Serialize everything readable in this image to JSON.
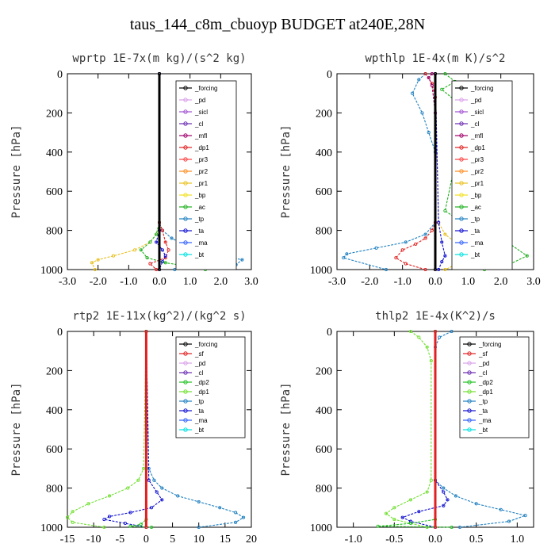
{
  "title": "taus_144_c8m_cbuoyp  BUDGET at240E,28N",
  "colors": {
    "_forcing": "#000000",
    "_pd": "#d8a0e8",
    "_sicl": "#a050d0",
    "_cl": "#6a2bb0",
    "_mfl": "#a0006a",
    "_dp1": "#e02020",
    "_pr3": "#ff4040",
    "_pr2": "#ff8c20",
    "_pr1": "#e8c020",
    "_bp": "#f0e020",
    "_ac": "#20b020",
    "_tp": "#2080c0",
    "_ta": "#1010d0",
    "_ma": "#3060ff",
    "_bt": "#00e0e0",
    "_sf": "#e02020",
    "_dp2": "#20c020",
    "_dp1g": "#70e030"
  },
  "chart_data": [
    {
      "type": "line",
      "title": "wprtp  1E-7x(m kg)/(s^2 kg)",
      "ylabel": "Pressure [hPa]",
      "xlim": [
        -3.0,
        3.0
      ],
      "ylim": [
        1000,
        0
      ],
      "xticks": [
        "-3.0",
        "-2.0",
        "-1.0",
        "0.0",
        "1.0",
        "2.0",
        "3.0"
      ],
      "yticks": [
        "0",
        "200",
        "400",
        "600",
        "800",
        "1000"
      ],
      "legend": [
        "_forcing",
        "_pd",
        "_sicl",
        "_cl",
        "_mfl",
        "_dp1",
        "_pr3",
        "_pr2",
        "_pr1",
        "_bp",
        "_ac",
        "_tp",
        "_ta",
        "_ma",
        "_bt"
      ],
      "legend_keys": [
        "_forcing",
        "_pd",
        "_sicl",
        "_cl",
        "_mfl",
        "_dp1",
        "_pr3",
        "_pr2",
        "_pr1",
        "_bp",
        "_ac",
        "_tp",
        "_ta",
        "_ma",
        "_bt"
      ],
      "series": [
        {
          "key": "_pr1",
          "x": [
            0,
            0,
            -0.1,
            -0.3,
            -0.8,
            -1.5,
            -2.0,
            -2.2,
            -2.1
          ],
          "y": [
            0,
            760,
            820,
            860,
            900,
            930,
            950,
            965,
            1000
          ]
        },
        {
          "key": "_ac",
          "x": [
            0,
            0,
            -0.1,
            -0.3,
            -0.6,
            -0.4,
            0.2,
            1.2,
            1.5
          ],
          "y": [
            0,
            760,
            820,
            860,
            900,
            940,
            965,
            990,
            1000
          ]
        },
        {
          "key": "_tp",
          "x": [
            0,
            0,
            0.1,
            0.4,
            0.9,
            1.5,
            2.2,
            2.7,
            2.5,
            0.5
          ],
          "y": [
            0,
            760,
            800,
            840,
            880,
            910,
            935,
            950,
            975,
            1000
          ]
        },
        {
          "key": "_dp1",
          "x": [
            0,
            0,
            0.1,
            0.2,
            0.3,
            0.2,
            -0.3,
            -0.1
          ],
          "y": [
            0,
            760,
            800,
            860,
            900,
            940,
            970,
            1000
          ]
        },
        {
          "key": "_ta",
          "x": [
            0,
            0,
            -0.1,
            0.1,
            0.2,
            0.1,
            0
          ],
          "y": [
            0,
            800,
            860,
            900,
            930,
            960,
            1000
          ]
        },
        {
          "key": "_forcing",
          "x": [
            0,
            0
          ],
          "y": [
            0,
            1000
          ]
        }
      ]
    },
    {
      "type": "line",
      "title": "wpthlp  1E-4x(m K)/s^2",
      "ylabel": "Pressure [hPa]",
      "xlim": [
        -3.0,
        3.0
      ],
      "ylim": [
        1000,
        0
      ],
      "xticks": [
        "-3.0",
        "-2.0",
        "-1.0",
        "0.0",
        "1.0",
        "2.0",
        "3.0"
      ],
      "yticks": [
        "0",
        "200",
        "400",
        "600",
        "800",
        "1000"
      ],
      "legend": [
        "_forcing",
        "_pd",
        "_sicl",
        "_cl",
        "_mfl",
        "_dp1",
        "_pr3",
        "_pr2",
        "_pr1",
        "_bp",
        "_ac",
        "_tp",
        "_ta",
        "_ma",
        "_bt"
      ],
      "legend_keys": [
        "_forcing",
        "_pd",
        "_sicl",
        "_cl",
        "_mfl",
        "_dp1",
        "_pr3",
        "_pr2",
        "_pr1",
        "_bp",
        "_ac",
        "_tp",
        "_ta",
        "_ma",
        "_bt"
      ],
      "series": [
        {
          "key": "_ac",
          "x": [
            0.3,
            0.6,
            0.2,
            0.7,
            0.8,
            0.9,
            1.0,
            0.6,
            0.3,
            1.0,
            2.2,
            2.8,
            2.3,
            1.5
          ],
          "y": [
            0,
            40,
            80,
            150,
            220,
            300,
            380,
            460,
            700,
            780,
            860,
            930,
            970,
            1000
          ]
        },
        {
          "key": "_tp",
          "x": [
            -0.3,
            -0.5,
            -0.7,
            -0.4,
            -0.2,
            0,
            0,
            -0.3,
            -0.9,
            -1.8,
            -2.7,
            -2.8,
            -1.5
          ],
          "y": [
            0,
            30,
            100,
            200,
            300,
            400,
            760,
            820,
            860,
            890,
            920,
            940,
            1000
          ]
        },
        {
          "key": "_dp1",
          "x": [
            -0.3,
            -0.1,
            0,
            0,
            -0.1,
            -0.3,
            -0.6,
            -1.0,
            -1.2,
            -0.9,
            -0.3
          ],
          "y": [
            0,
            50,
            120,
            760,
            800,
            840,
            870,
            900,
            940,
            970,
            1000
          ]
        },
        {
          "key": "_pr1",
          "x": [
            0,
            0.1,
            0.3,
            0.6,
            0.9,
            1.0,
            0.7,
            0.3
          ],
          "y": [
            0,
            760,
            820,
            860,
            900,
            940,
            970,
            1000
          ]
        },
        {
          "key": "_mfl",
          "x": [
            -0.1,
            -0.2,
            -0.1,
            0,
            0
          ],
          "y": [
            0,
            20,
            60,
            200,
            1000
          ]
        },
        {
          "key": "_ta",
          "x": [
            0,
            0.1,
            0.2,
            0.3,
            0.2,
            0.1
          ],
          "y": [
            0,
            760,
            860,
            930,
            960,
            1000
          ]
        },
        {
          "key": "_forcing",
          "x": [
            0,
            0
          ],
          "y": [
            0,
            1000
          ]
        }
      ]
    },
    {
      "type": "line",
      "title": "rtp2  1E-11x(kg^2)/(kg^2 s)",
      "ylabel": "Pressure [hPa]",
      "xlim": [
        -15,
        20
      ],
      "ylim": [
        1000,
        0
      ],
      "xticks": [
        "-15",
        "-10",
        "-5",
        "0",
        "5",
        "10",
        "15",
        "20"
      ],
      "yticks": [
        "0",
        "200",
        "400",
        "600",
        "800",
        "1000"
      ],
      "legend": [
        "_forcing",
        "_sf",
        "_pd",
        "_cl",
        "_dp2",
        "_dp1",
        "_tp",
        "_ta",
        "_ma",
        "_bt"
      ],
      "legend_keys": [
        "_forcing",
        "_sf",
        "_pd",
        "_cl",
        "_dp2",
        "_dp1g",
        "_tp",
        "_ta",
        "_ma",
        "_bt"
      ],
      "series": [
        {
          "key": "_dp1g",
          "x": [
            0,
            -0.5,
            -1.5,
            -3.5,
            -7,
            -11,
            -14,
            -15,
            -14,
            -8
          ],
          "y": [
            0,
            700,
            760,
            800,
            840,
            880,
            920,
            950,
            975,
            1000
          ]
        },
        {
          "key": "_tp",
          "x": [
            0,
            0.5,
            1.5,
            3,
            6,
            10,
            14,
            17,
            18.5,
            17,
            10
          ],
          "y": [
            0,
            700,
            760,
            800,
            840,
            870,
            900,
            925,
            950,
            975,
            1000
          ]
        },
        {
          "key": "_ta",
          "x": [
            0,
            0.5,
            2,
            3,
            1,
            -3,
            -7,
            -8,
            -4,
            0
          ],
          "y": [
            0,
            760,
            820,
            860,
            900,
            925,
            945,
            960,
            980,
            1000
          ]
        },
        {
          "key": "_dp2",
          "x": [
            0,
            0,
            -1,
            -3,
            1
          ],
          "y": [
            0,
            960,
            985,
            995,
            1000
          ]
        },
        {
          "key": "_forcing",
          "x": [
            0,
            0
          ],
          "y": [
            0,
            1000
          ]
        }
      ]
    },
    {
      "type": "line",
      "title": "thlp2  1E-4x(K^2)/s",
      "ylabel": "Pressure [hPa]",
      "xlim": [
        -1.2,
        1.2
      ],
      "ylim": [
        1000,
        0
      ],
      "xticks": [
        "-1.0",
        "-0.5",
        "0.0",
        "0.5",
        "1.0"
      ],
      "yticks": [
        "0",
        "200",
        "400",
        "600",
        "800",
        "1000"
      ],
      "legend": [
        "_forcing",
        "_sf",
        "_pd",
        "_cl",
        "_dp2",
        "_dp1",
        "_tp",
        "_ta",
        "_ma",
        "_bt"
      ],
      "legend_keys": [
        "_forcing",
        "_sf",
        "_pd",
        "_cl",
        "_dp2",
        "_dp1g",
        "_tp",
        "_ta",
        "_ma",
        "_bt"
      ],
      "series": [
        {
          "key": "_dp1g",
          "x": [
            -0.3,
            -0.2,
            -0.1,
            -0.05,
            -0.05,
            -0.1,
            -0.3,
            -0.5,
            -0.6,
            -0.5,
            -0.1
          ],
          "y": [
            0,
            30,
            80,
            150,
            760,
            820,
            860,
            900,
            930,
            960,
            1000
          ]
        },
        {
          "key": "_tp",
          "x": [
            0.2,
            0.05,
            0,
            0,
            0.1,
            0.25,
            0.5,
            0.8,
            1.1,
            0.9,
            0.3
          ],
          "y": [
            0,
            30,
            80,
            760,
            800,
            840,
            880,
            910,
            940,
            970,
            1000
          ]
        },
        {
          "key": "_ta",
          "x": [
            0,
            0,
            0.1,
            0.15,
            0.1,
            -0.2,
            -0.4,
            -0.3,
            0
          ],
          "y": [
            0,
            760,
            820,
            860,
            890,
            920,
            950,
            970,
            1000
          ]
        },
        {
          "key": "_dp2",
          "x": [
            0,
            0,
            -0.3,
            -0.7,
            0.2
          ],
          "y": [
            0,
            960,
            980,
            995,
            1000
          ]
        },
        {
          "key": "_forcing",
          "x": [
            0,
            0
          ],
          "y": [
            0,
            1000
          ]
        }
      ]
    }
  ]
}
